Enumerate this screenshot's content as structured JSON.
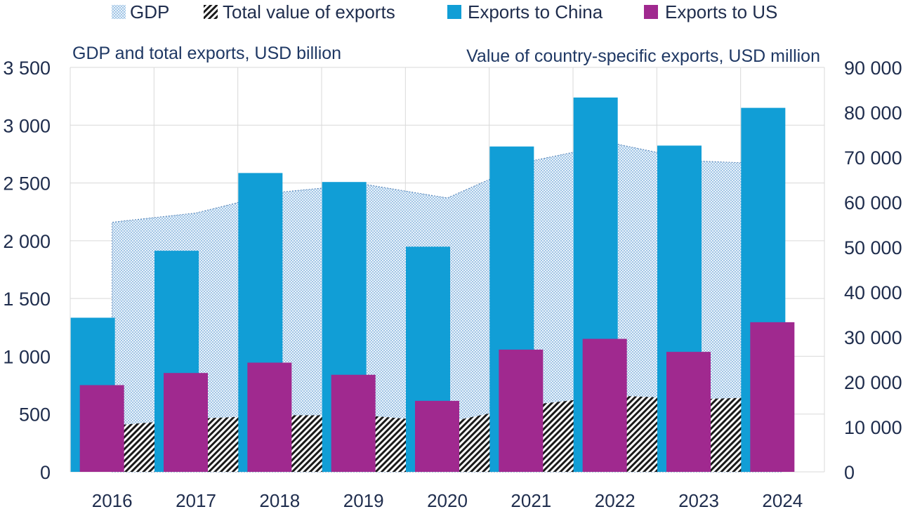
{
  "chart_data": {
    "type": "bar",
    "categories": [
      "2016",
      "2017",
      "2018",
      "2019",
      "2020",
      "2021",
      "2022",
      "2023",
      "2024"
    ],
    "left_axis": {
      "label": "GDP and total exports, USD billion",
      "ylim": [
        0,
        3500
      ],
      "ticks": [
        0,
        500,
        1000,
        1500,
        2000,
        2500,
        3000,
        3500
      ],
      "tick_labels": [
        "0",
        "500",
        "1 000",
        "1 500",
        "2 000",
        "2 500",
        "3 000",
        "3 500"
      ]
    },
    "right_axis": {
      "label": "Value of country-specific exports, USD million",
      "ylim": [
        0,
        90000
      ],
      "ticks": [
        0,
        10000,
        20000,
        30000,
        40000,
        50000,
        60000,
        70000,
        80000,
        90000
      ],
      "tick_labels": [
        "0",
        "10 000",
        "20 000",
        "30 000",
        "40 000",
        "50 000",
        "60 000",
        "70 000",
        "80 000",
        "90 000"
      ]
    },
    "series": [
      {
        "name": "GDP",
        "type": "area",
        "axis": "left",
        "values": [
          2160,
          2240,
          2420,
          2490,
          2370,
          2690,
          2840,
          2690,
          2660
        ]
      },
      {
        "name": "Total value of exports",
        "type": "area",
        "axis": "left",
        "values": [
          400,
          460,
          490,
          490,
          430,
          580,
          660,
          630,
          650
        ]
      },
      {
        "name": "Exports to China",
        "type": "bar",
        "axis": "right",
        "values": [
          34300,
          49200,
          66500,
          64500,
          50100,
          72400,
          83300,
          72600,
          81000
        ]
      },
      {
        "name": "Exports to US",
        "type": "bar",
        "axis": "right",
        "values": [
          19300,
          22000,
          24300,
          21600,
          15800,
          27200,
          29600,
          26700,
          33300
        ]
      }
    ],
    "legend_position": "top",
    "grid": true
  },
  "colors": {
    "gdp": "#9dc3e6",
    "exports_total": "#1a1a1a",
    "china": "#119ed6",
    "us": "#a0298f",
    "text": "#1f2d4d",
    "axis_title": "#1f3864"
  }
}
